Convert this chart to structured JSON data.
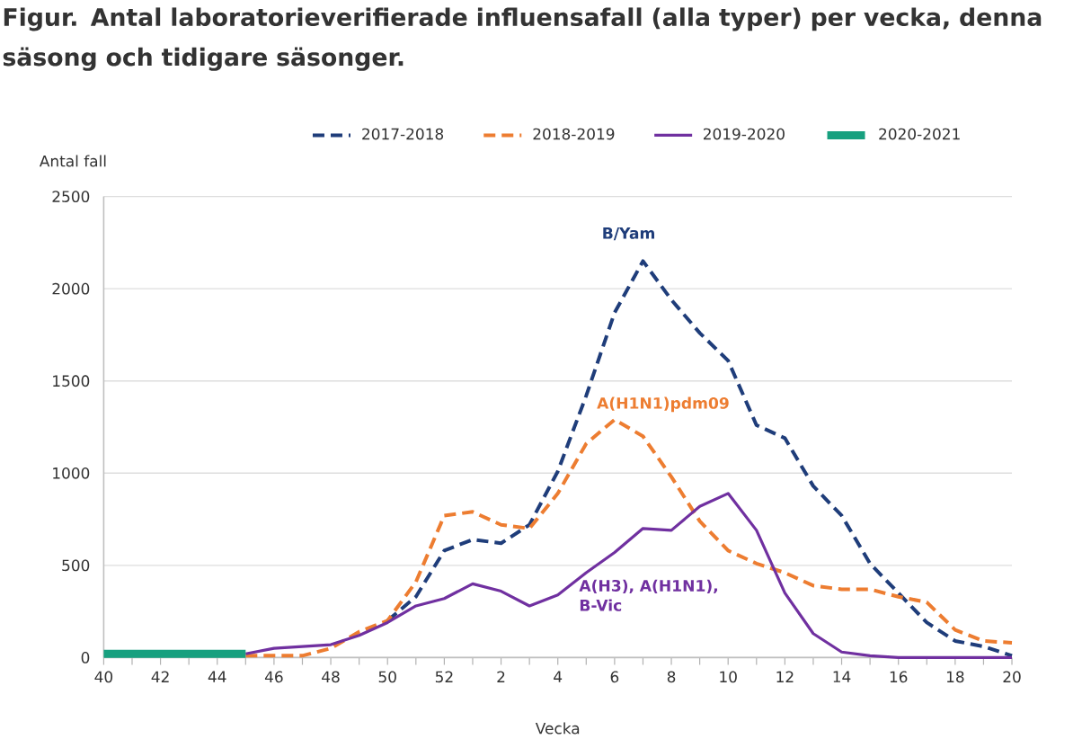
{
  "chart_data": {
    "type": "line",
    "title": "Figur. Antal laboratorieverifierade influensafall (alla typer) per vecka, denna säsong och tidigare säsonger.",
    "xlabel": "Vecka",
    "ylabel": "Antal fall",
    "categories": [
      "40",
      null,
      "42",
      null,
      "44",
      null,
      "46",
      null,
      "48",
      null,
      "50",
      null,
      "52",
      null,
      "2",
      null,
      "4",
      null,
      "6",
      null,
      "8",
      null,
      "10",
      null,
      "12",
      null,
      "14",
      null,
      "16",
      null,
      "18",
      null,
      "20"
    ],
    "series": [
      {
        "name": "2017-2018",
        "color": "#1f3d7a",
        "line_style": "dashed",
        "values": [
          null,
          null,
          null,
          null,
          null,
          null,
          null,
          null,
          null,
          null,
          200,
          330,
          580,
          640,
          620,
          720,
          1010,
          1420,
          1870,
          2150,
          1940,
          1760,
          1610,
          1260,
          1190,
          930,
          770,
          510,
          350,
          190,
          90,
          60,
          10
        ]
      },
      {
        "name": "2018-2019",
        "color": "#ed7d31",
        "line_style": "dashed",
        "values": [
          null,
          null,
          null,
          null,
          null,
          10,
          10,
          10,
          50,
          140,
          200,
          410,
          770,
          790,
          720,
          700,
          890,
          1160,
          1290,
          1200,
          980,
          740,
          580,
          510,
          460,
          390,
          370,
          370,
          330,
          300,
          150,
          90,
          80
        ]
      },
      {
        "name": "2019-2020",
        "color": "#7030a0",
        "line_style": "solid",
        "values": [
          null,
          null,
          null,
          null,
          null,
          20,
          50,
          60,
          70,
          120,
          190,
          280,
          320,
          400,
          360,
          280,
          340,
          460,
          570,
          700,
          690,
          820,
          890,
          690,
          350,
          130,
          30,
          10,
          0,
          0,
          0,
          0,
          0
        ]
      },
      {
        "name": "2020-2021",
        "color": "#17a07f",
        "line_style": "solid",
        "values": [
          20,
          20,
          20,
          20,
          20,
          20,
          null,
          null,
          null,
          null,
          null,
          null,
          null,
          null,
          null,
          null,
          null,
          null,
          null,
          null,
          null,
          null,
          null,
          null,
          null,
          null,
          null,
          null,
          null,
          null,
          null,
          null,
          null
        ]
      }
    ],
    "ylim": [
      0,
      2500
    ],
    "yticks": [
      0,
      500,
      1000,
      1500,
      2000,
      2500
    ],
    "grid": "y",
    "legend": "top",
    "annotations": [
      "B/Yam",
      "A(H1N1)pdm09",
      "A(H3), A(H1N1), B-Vic"
    ]
  }
}
